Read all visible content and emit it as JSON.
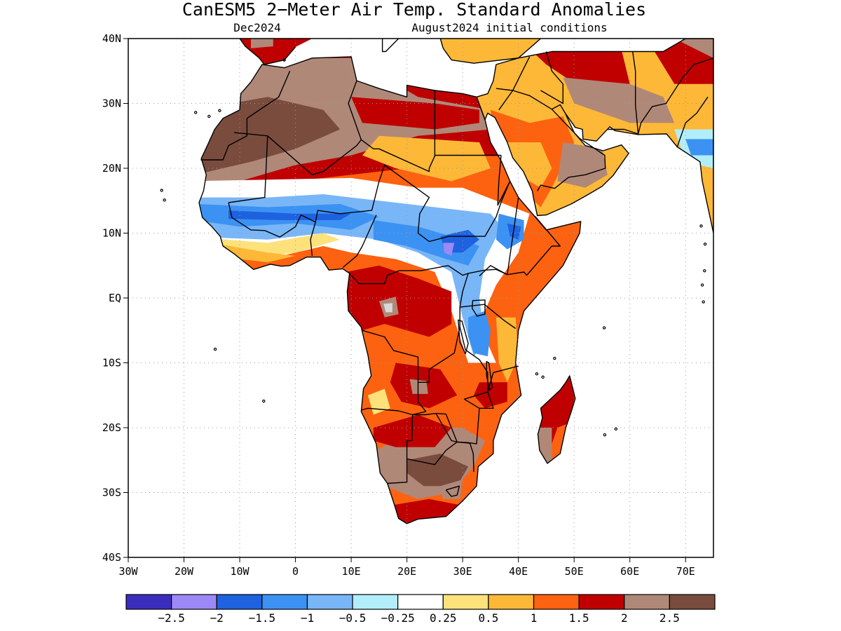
{
  "map": {
    "title": "CanESM5 2−Meter Air Temp. Standard Anomalies",
    "subtitle_left": "Dec2024",
    "subtitle_right": "August2024 initial conditions",
    "extent": {
      "lon_min": -30,
      "lon_max": 75,
      "lat_min": -40,
      "lat_max": 40
    },
    "lat_ticks": [
      {
        "value": 40,
        "label": "40N"
      },
      {
        "value": 30,
        "label": "30N"
      },
      {
        "value": 20,
        "label": "20N"
      },
      {
        "value": 10,
        "label": "10N"
      },
      {
        "value": 0,
        "label": "EQ"
      },
      {
        "value": -10,
        "label": "10S"
      },
      {
        "value": -20,
        "label": "20S"
      },
      {
        "value": -30,
        "label": "30S"
      },
      {
        "value": -40,
        "label": "40S"
      }
    ],
    "lon_ticks": [
      {
        "value": -30,
        "label": "30W"
      },
      {
        "value": -20,
        "label": "20W"
      },
      {
        "value": -10,
        "label": "10W"
      },
      {
        "value": 0,
        "label": "0"
      },
      {
        "value": 10,
        "label": "10E"
      },
      {
        "value": 20,
        "label": "20E"
      },
      {
        "value": 30,
        "label": "30E"
      },
      {
        "value": 40,
        "label": "40E"
      },
      {
        "value": 50,
        "label": "50E"
      },
      {
        "value": 60,
        "label": "60E"
      },
      {
        "value": 70,
        "label": "70E"
      }
    ]
  },
  "colorbar": {
    "colors": [
      "#3c2ebd",
      "#9c88f6",
      "#1e62e0",
      "#3c92f2",
      "#78b6f8",
      "#b2eefa",
      "#ffffff",
      "#fde27c",
      "#feb837",
      "#fd6210",
      "#c00000",
      "#b08878",
      "#7a4c3e"
    ],
    "labels": [
      "−2.5",
      "−2",
      "−1.5",
      "−1",
      "−0.5",
      "−0.25",
      "0.25",
      "0.5",
      "1",
      "1.5",
      "2",
      "2.5"
    ]
  },
  "colors": {
    "land_outline": "#000000",
    "grid": "#999999"
  }
}
